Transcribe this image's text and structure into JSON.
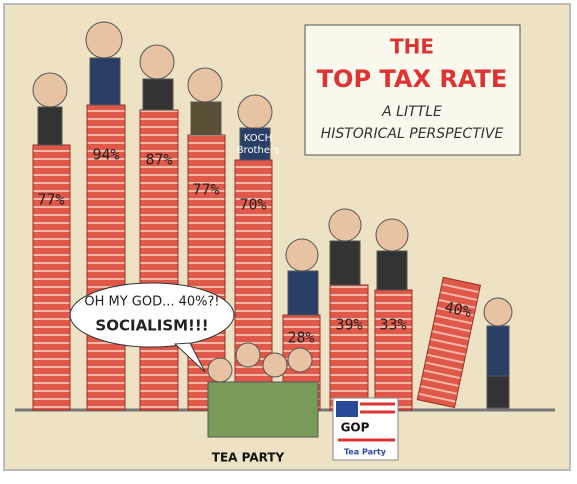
{
  "title": {
    "line1": "THE",
    "line2": "TOP TAX RATE",
    "subtitle_line1": "A LITTLE",
    "subtitle_line2": "HISTORICAL PERSPECTIVE"
  },
  "columns": [
    {
      "label": "77%"
    },
    {
      "label": "94%"
    },
    {
      "label": "87%"
    },
    {
      "label": "77%"
    },
    {
      "label": "70%"
    },
    {
      "label": "28%"
    },
    {
      "label": "39%"
    },
    {
      "label": "33%"
    },
    {
      "label": "40%"
    }
  ],
  "koch": {
    "line1": "KOCH",
    "line2": "Brothers"
  },
  "speech": {
    "line1": "OH MY GOD... 40%?!",
    "line2": "SOCIALISM!!!"
  },
  "crowd_label": "TEA PARTY",
  "sign": {
    "line1": "GOP",
    "line2": "Tea Party"
  }
}
